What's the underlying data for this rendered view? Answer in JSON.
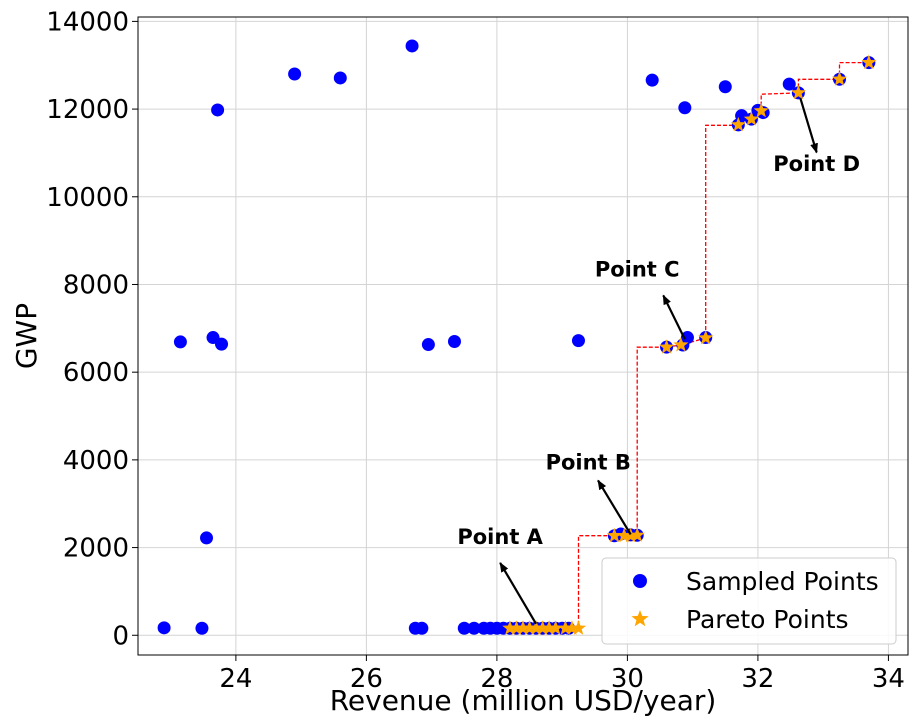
{
  "chart_data": {
    "type": "scatter",
    "title": "",
    "xlabel": "Revenue (million USD/year)",
    "ylabel": "GWP",
    "xlim": [
      22.5,
      34.3
    ],
    "ylim": [
      -450,
      14100
    ],
    "xticks": [
      24,
      26,
      28,
      30,
      32,
      34
    ],
    "yticks": [
      0,
      2000,
      4000,
      6000,
      8000,
      10000,
      12000,
      14000
    ],
    "grid": true,
    "legend_position": "bottom-right",
    "colors": {
      "sampled": "#0000ff",
      "pareto": "#ffa500",
      "frontier": "#ff0000"
    },
    "series": [
      {
        "name": "Sampled Points",
        "marker": "circle",
        "points": [
          [
            22.9,
            170
          ],
          [
            23.15,
            6690
          ],
          [
            23.48,
            160
          ],
          [
            23.55,
            2220
          ],
          [
            23.65,
            6790
          ],
          [
            23.72,
            11980
          ],
          [
            23.78,
            6640
          ],
          [
            24.9,
            12800
          ],
          [
            25.6,
            12710
          ],
          [
            26.7,
            13440
          ],
          [
            26.75,
            160
          ],
          [
            26.85,
            160
          ],
          [
            26.95,
            6630
          ],
          [
            27.35,
            6700
          ],
          [
            27.5,
            160
          ],
          [
            27.65,
            160
          ],
          [
            27.8,
            160
          ],
          [
            27.9,
            160
          ],
          [
            28.0,
            160
          ],
          [
            28.1,
            160
          ],
          [
            28.2,
            160
          ],
          [
            28.3,
            160
          ],
          [
            28.4,
            160
          ],
          [
            28.5,
            160
          ],
          [
            28.6,
            160
          ],
          [
            28.7,
            160
          ],
          [
            28.8,
            160
          ],
          [
            28.9,
            160
          ],
          [
            29.0,
            160
          ],
          [
            29.1,
            160
          ],
          [
            29.25,
            6720
          ],
          [
            29.8,
            2270
          ],
          [
            29.9,
            2310
          ],
          [
            30.05,
            2290
          ],
          [
            30.15,
            2280
          ],
          [
            30.38,
            12660
          ],
          [
            30.6,
            6570
          ],
          [
            30.85,
            6620
          ],
          [
            30.88,
            12030
          ],
          [
            30.92,
            6790
          ],
          [
            31.2,
            6790
          ],
          [
            31.5,
            12510
          ],
          [
            31.7,
            11640
          ],
          [
            31.75,
            11850
          ],
          [
            31.9,
            11770
          ],
          [
            32.0,
            11970
          ],
          [
            32.08,
            11920
          ],
          [
            32.48,
            12570
          ],
          [
            32.62,
            12370
          ],
          [
            33.25,
            12680
          ],
          [
            33.7,
            13060
          ]
        ]
      },
      {
        "name": "Pareto Points",
        "marker": "star",
        "points": [
          [
            28.2,
            160
          ],
          [
            28.3,
            160
          ],
          [
            28.4,
            160
          ],
          [
            28.5,
            160
          ],
          [
            28.6,
            160
          ],
          [
            28.7,
            160
          ],
          [
            28.8,
            160
          ],
          [
            28.9,
            160
          ],
          [
            29.05,
            160
          ],
          [
            29.15,
            160
          ],
          [
            29.25,
            160
          ],
          [
            29.8,
            2270
          ],
          [
            29.95,
            2270
          ],
          [
            30.05,
            2270
          ],
          [
            30.15,
            2280
          ],
          [
            30.6,
            6570
          ],
          [
            30.82,
            6620
          ],
          [
            31.2,
            6780
          ],
          [
            31.7,
            11640
          ],
          [
            31.9,
            11770
          ],
          [
            32.05,
            11960
          ],
          [
            32.62,
            12370
          ],
          [
            33.25,
            12680
          ],
          [
            33.7,
            13060
          ]
        ]
      }
    ],
    "frontier_steps": [
      [
        28.2,
        160
      ],
      [
        29.25,
        160
      ],
      [
        29.25,
        2270
      ],
      [
        30.15,
        2270
      ],
      [
        30.15,
        6570
      ],
      [
        30.6,
        6570
      ],
      [
        30.82,
        6620
      ],
      [
        31.2,
        6780
      ],
      [
        31.2,
        11630
      ],
      [
        31.7,
        11630
      ],
      [
        31.9,
        11770
      ],
      [
        32.05,
        11960
      ],
      [
        32.05,
        12340
      ],
      [
        32.62,
        12370
      ],
      [
        32.62,
        12680
      ],
      [
        33.25,
        12680
      ],
      [
        33.25,
        13060
      ],
      [
        33.7,
        13060
      ]
    ],
    "annotations": [
      {
        "text": "Point A",
        "text_x": 28.05,
        "text_y": 2080,
        "arrow_from": [
          28.6,
          260
        ],
        "arrow_to": [
          28.05,
          1650
        ]
      },
      {
        "text": "Point B",
        "text_x": 29.4,
        "text_y": 3780,
        "arrow_from": [
          30.05,
          2300
        ],
        "arrow_to": [
          29.55,
          3530
        ]
      },
      {
        "text": "Point C",
        "text_x": 30.15,
        "text_y": 8180,
        "arrow_from": [
          30.88,
          6750
        ],
        "arrow_to": [
          30.55,
          7750
        ]
      },
      {
        "text": "Point D",
        "text_x": 32.9,
        "text_y": 10590,
        "arrow_from": [
          32.65,
          12250
        ],
        "arrow_to": [
          32.9,
          11010
        ]
      }
    ]
  }
}
